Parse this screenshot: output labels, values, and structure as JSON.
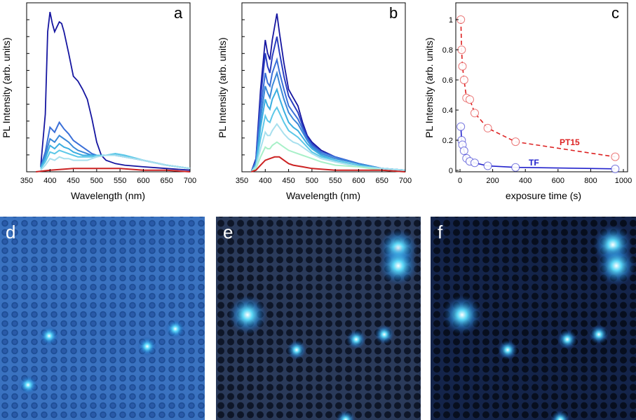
{
  "chart_data": [
    {
      "panel": "a",
      "type": "line",
      "xlabel": "Wavelength (nm)",
      "ylabel": "PL Intensity (arb. units)",
      "xlim": [
        350,
        700
      ],
      "ylim": [
        0,
        1
      ],
      "xticks": [
        "350",
        "400",
        "450",
        "500",
        "550",
        "600",
        "650",
        "700"
      ],
      "series": [
        {
          "color": "#1515a0",
          "x": [
            380,
            390,
            395,
            400,
            405,
            410,
            420,
            425,
            430,
            440,
            450,
            460,
            470,
            480,
            490,
            500,
            510,
            520,
            540,
            560,
            600,
            650,
            700
          ],
          "y": [
            0.03,
            0.35,
            0.85,
            0.97,
            0.9,
            0.85,
            0.91,
            0.9,
            0.85,
            0.72,
            0.58,
            0.55,
            0.5,
            0.44,
            0.32,
            0.18,
            0.1,
            0.07,
            0.05,
            0.04,
            0.03,
            0.02,
            0.01
          ]
        },
        {
          "color": "#3a6fd8",
          "x": [
            380,
            390,
            400,
            410,
            420,
            430,
            440,
            450,
            460,
            470,
            480,
            490,
            500,
            520,
            540,
            560,
            600,
            650,
            700
          ],
          "y": [
            0.03,
            0.12,
            0.27,
            0.24,
            0.3,
            0.26,
            0.23,
            0.19,
            0.17,
            0.15,
            0.13,
            0.11,
            0.1,
            0.1,
            0.1,
            0.09,
            0.07,
            0.04,
            0.02
          ]
        },
        {
          "color": "#3a88d8",
          "x": [
            380,
            390,
            400,
            410,
            420,
            430,
            440,
            450,
            460,
            470,
            480,
            490,
            500,
            520,
            540,
            560,
            600,
            650,
            700
          ],
          "y": [
            0.03,
            0.1,
            0.2,
            0.18,
            0.22,
            0.2,
            0.18,
            0.15,
            0.13,
            0.12,
            0.11,
            0.1,
            0.1,
            0.1,
            0.1,
            0.09,
            0.07,
            0.04,
            0.02
          ]
        },
        {
          "color": "#3aaee0",
          "x": [
            380,
            390,
            400,
            410,
            420,
            430,
            440,
            450,
            460,
            470,
            480,
            490,
            500,
            520,
            540,
            560,
            600,
            650,
            700
          ],
          "y": [
            0.02,
            0.08,
            0.16,
            0.14,
            0.17,
            0.15,
            0.14,
            0.12,
            0.11,
            0.1,
            0.1,
            0.1,
            0.1,
            0.1,
            0.11,
            0.1,
            0.07,
            0.04,
            0.02
          ]
        },
        {
          "color": "#5cc8e8",
          "x": [
            380,
            390,
            400,
            410,
            420,
            430,
            440,
            450,
            460,
            470,
            480,
            490,
            500,
            520,
            540,
            560,
            600,
            650,
            700
          ],
          "y": [
            0.02,
            0.06,
            0.12,
            0.11,
            0.13,
            0.12,
            0.11,
            0.1,
            0.09,
            0.09,
            0.09,
            0.09,
            0.1,
            0.1,
            0.11,
            0.1,
            0.07,
            0.04,
            0.02
          ]
        },
        {
          "color": "#a8e0ee",
          "x": [
            380,
            390,
            400,
            410,
            420,
            430,
            440,
            450,
            460,
            470,
            480,
            490,
            500,
            520,
            540,
            560,
            600,
            650,
            700
          ],
          "y": [
            0.01,
            0.04,
            0.08,
            0.07,
            0.09,
            0.08,
            0.08,
            0.07,
            0.07,
            0.07,
            0.07,
            0.08,
            0.09,
            0.1,
            0.1,
            0.09,
            0.07,
            0.04,
            0.02
          ]
        },
        {
          "color": "#cc2222",
          "x": [
            370,
            400,
            450,
            500,
            550,
            600,
            650,
            700
          ],
          "y": [
            0.0,
            0.01,
            0.02,
            0.02,
            0.02,
            0.01,
            0.01,
            0.0
          ]
        }
      ]
    },
    {
      "panel": "b",
      "type": "line",
      "xlabel": "Wavelength (nm)",
      "ylabel": "PL Intensity (arb. units)",
      "xlim": [
        350,
        700
      ],
      "ylim": [
        0,
        1
      ],
      "xticks": [
        "350",
        "400",
        "450",
        "500",
        "550",
        "600",
        "650",
        "700"
      ],
      "series": [
        {
          "color": "#1515a0",
          "x": [
            370,
            380,
            390,
            400,
            405,
            410,
            415,
            420,
            425,
            430,
            440,
            450,
            460,
            470,
            480,
            490,
            500,
            520,
            550,
            600,
            650,
            700
          ],
          "y": [
            0.0,
            0.08,
            0.5,
            0.8,
            0.72,
            0.68,
            0.8,
            0.88,
            0.96,
            0.85,
            0.66,
            0.5,
            0.45,
            0.4,
            0.3,
            0.22,
            0.18,
            0.13,
            0.09,
            0.05,
            0.02,
            0.01
          ]
        },
        {
          "color": "#2a3ec0",
          "x": [
            370,
            380,
            390,
            400,
            405,
            410,
            415,
            420,
            425,
            430,
            440,
            450,
            460,
            470,
            480,
            490,
            500,
            520,
            550,
            600,
            650,
            700
          ],
          "y": [
            0.0,
            0.07,
            0.45,
            0.72,
            0.64,
            0.6,
            0.7,
            0.76,
            0.82,
            0.73,
            0.58,
            0.46,
            0.41,
            0.36,
            0.28,
            0.21,
            0.17,
            0.12,
            0.09,
            0.05,
            0.02,
            0.01
          ]
        },
        {
          "color": "#3a6fd8",
          "x": [
            370,
            380,
            390,
            400,
            405,
            410,
            415,
            420,
            425,
            430,
            440,
            450,
            460,
            470,
            480,
            490,
            500,
            520,
            550,
            600,
            650,
            700
          ],
          "y": [
            0.0,
            0.06,
            0.38,
            0.6,
            0.54,
            0.52,
            0.6,
            0.64,
            0.68,
            0.61,
            0.5,
            0.4,
            0.36,
            0.32,
            0.26,
            0.2,
            0.16,
            0.12,
            0.09,
            0.05,
            0.02,
            0.01
          ]
        },
        {
          "color": "#3a88d8",
          "x": [
            370,
            380,
            390,
            400,
            405,
            410,
            415,
            420,
            425,
            430,
            440,
            450,
            460,
            470,
            480,
            490,
            500,
            520,
            550,
            600,
            650,
            700
          ],
          "y": [
            0.0,
            0.05,
            0.32,
            0.52,
            0.48,
            0.45,
            0.52,
            0.56,
            0.6,
            0.54,
            0.44,
            0.36,
            0.32,
            0.29,
            0.24,
            0.19,
            0.15,
            0.11,
            0.08,
            0.05,
            0.02,
            0.01
          ]
        },
        {
          "color": "#3aaee0",
          "x": [
            370,
            380,
            390,
            400,
            405,
            410,
            415,
            420,
            425,
            430,
            440,
            450,
            460,
            470,
            480,
            490,
            500,
            520,
            550,
            600,
            650,
            700
          ],
          "y": [
            0.0,
            0.04,
            0.27,
            0.44,
            0.4,
            0.38,
            0.44,
            0.47,
            0.5,
            0.45,
            0.37,
            0.3,
            0.27,
            0.25,
            0.21,
            0.17,
            0.14,
            0.1,
            0.07,
            0.04,
            0.02,
            0.01
          ]
        },
        {
          "color": "#5cc8e8",
          "x": [
            370,
            380,
            390,
            400,
            405,
            410,
            415,
            420,
            425,
            430,
            440,
            450,
            460,
            470,
            480,
            490,
            500,
            520,
            550,
            600,
            650,
            700
          ],
          "y": [
            0.0,
            0.04,
            0.2,
            0.34,
            0.31,
            0.3,
            0.34,
            0.37,
            0.39,
            0.36,
            0.3,
            0.25,
            0.23,
            0.21,
            0.18,
            0.15,
            0.12,
            0.09,
            0.07,
            0.04,
            0.02,
            0.01
          ]
        },
        {
          "color": "#a8e0ee",
          "x": [
            370,
            380,
            390,
            400,
            405,
            410,
            415,
            420,
            425,
            430,
            440,
            450,
            460,
            470,
            480,
            490,
            500,
            520,
            550,
            600,
            650,
            700
          ],
          "y": [
            0.0,
            0.03,
            0.14,
            0.24,
            0.22,
            0.22,
            0.25,
            0.27,
            0.29,
            0.27,
            0.23,
            0.2,
            0.18,
            0.17,
            0.15,
            0.13,
            0.11,
            0.08,
            0.06,
            0.03,
            0.02,
            0.01
          ]
        },
        {
          "color": "#a8f0c8",
          "x": [
            370,
            380,
            390,
            400,
            405,
            410,
            415,
            420,
            425,
            430,
            440,
            450,
            460,
            470,
            480,
            490,
            500,
            520,
            550,
            600,
            650,
            700
          ],
          "y": [
            0.0,
            0.02,
            0.09,
            0.15,
            0.14,
            0.14,
            0.16,
            0.17,
            0.18,
            0.17,
            0.15,
            0.13,
            0.12,
            0.11,
            0.1,
            0.09,
            0.08,
            0.06,
            0.04,
            0.03,
            0.01,
            0.0
          ]
        },
        {
          "color": "#cc2222",
          "x": [
            370,
            380,
            390,
            400,
            410,
            420,
            425,
            430,
            440,
            450,
            460,
            480,
            500,
            550,
            600,
            650,
            700
          ],
          "y": [
            0.0,
            0.01,
            0.04,
            0.07,
            0.08,
            0.09,
            0.09,
            0.09,
            0.07,
            0.05,
            0.04,
            0.03,
            0.02,
            0.01,
            0.01,
            0.01,
            0.0
          ]
        }
      ]
    },
    {
      "panel": "c",
      "type": "scatter",
      "xlabel": "exposure time (s)",
      "ylabel": "PL Intensity (arb. units)",
      "xlim": [
        0,
        1000
      ],
      "ylim": [
        0,
        1.0
      ],
      "xticks": [
        "0",
        "200",
        "400",
        "600",
        "800",
        "1000"
      ],
      "yticks": [
        "0",
        "0.2",
        "0.4",
        "0.6",
        "0.8",
        "1"
      ],
      "series": [
        {
          "name": "PT15",
          "color": "#dd2222",
          "dashed": true,
          "x": [
            5,
            10,
            15,
            25,
            40,
            60,
            90,
            170,
            340,
            950
          ],
          "y": [
            1.0,
            0.8,
            0.69,
            0.6,
            0.48,
            0.47,
            0.38,
            0.28,
            0.19,
            0.09
          ]
        },
        {
          "name": "TF",
          "color": "#2222cc",
          "dashed": false,
          "x": [
            5,
            10,
            15,
            25,
            40,
            60,
            90,
            170,
            340,
            950
          ],
          "y": [
            0.29,
            0.2,
            0.17,
            0.13,
            0.08,
            0.06,
            0.05,
            0.03,
            0.02,
            0.01
          ]
        }
      ]
    }
  ],
  "labels": {
    "a": "a",
    "b": "b",
    "c": "c",
    "d": "d",
    "e": "e",
    "f": "f",
    "pt15": "PT15",
    "tf": "TF"
  },
  "micrographs": [
    {
      "panel": "d",
      "bg": "#2a5ea8",
      "glow": [
        [
          70,
          170
        ],
        [
          250,
          160
        ],
        [
          210,
          185
        ],
        [
          40,
          240
        ]
      ]
    },
    {
      "panel": "e",
      "bg": "#101a30",
      "glow": [
        [
          260,
          45
        ],
        [
          260,
          70
        ],
        [
          45,
          140
        ],
        [
          200,
          175
        ],
        [
          240,
          168
        ],
        [
          115,
          190
        ],
        [
          185,
          290
        ]
      ]
    },
    {
      "panel": "f",
      "bg": "#0a1428",
      "glow": [
        [
          260,
          40
        ],
        [
          265,
          70
        ],
        [
          45,
          140
        ],
        [
          195,
          175
        ],
        [
          240,
          168
        ],
        [
          110,
          190
        ],
        [
          185,
          290
        ]
      ]
    }
  ]
}
